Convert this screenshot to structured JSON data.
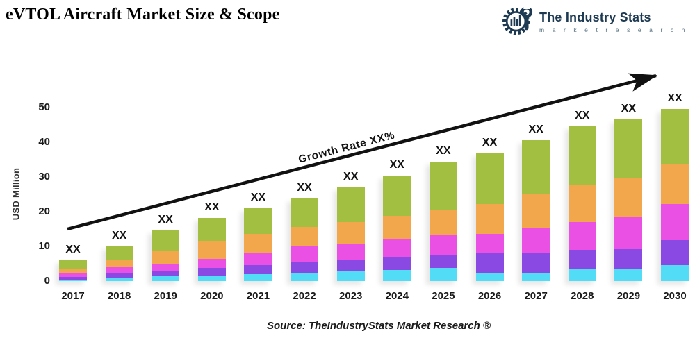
{
  "page_title": "eVTOL Aircraft Market Size & Scope",
  "logo": {
    "name": "The Industry Stats",
    "subtitle": "m a r k e t   r e s e a r c h",
    "color": "#1d3a52",
    "subtitle_color": "#547080",
    "icon": "gear-wrench-barchart-icon"
  },
  "source": "Source: TheIndustryStats Market Research ®",
  "chart_data": {
    "type": "bar",
    "stacked": true,
    "title": "eVTOL Aircraft Market Size & Scope",
    "xlabel": "",
    "ylabel": "USD Million",
    "ylim": [
      0,
      50
    ],
    "yticks": [
      0,
      10,
      20,
      30,
      40,
      50
    ],
    "grid": false,
    "legend": "none",
    "categories": [
      "2017",
      "2018",
      "2019",
      "2020",
      "2021",
      "2022",
      "2023",
      "2024",
      "2025",
      "2026",
      "2027",
      "2028",
      "2029",
      "2030"
    ],
    "bar_value_label": "XX",
    "annotation": "Growth Rate XX%",
    "annotation_style": "rotated along ascending arrow",
    "totals": [
      6.0,
      10.1,
      14.7,
      18.3,
      21.0,
      23.8,
      27.0,
      30.4,
      34.5,
      36.9,
      40.7,
      44.6,
      46.6,
      49.6
    ],
    "series": [
      {
        "name": "segment-cyan",
        "color": "#53DCF5",
        "values": [
          0.5,
          1.0,
          1.4,
          1.7,
          2.0,
          2.4,
          2.8,
          3.2,
          3.8,
          2.5,
          2.5,
          3.5,
          3.6,
          4.7
        ]
      },
      {
        "name": "segment-purple",
        "color": "#8B49E3",
        "values": [
          0.7,
          1.5,
          1.4,
          2.2,
          2.6,
          3.0,
          3.2,
          3.6,
          3.8,
          5.6,
          5.7,
          5.6,
          5.7,
          7.2
        ]
      },
      {
        "name": "segment-magenta",
        "color": "#EA50E4",
        "values": [
          1.0,
          1.6,
          2.3,
          2.6,
          3.7,
          4.6,
          4.9,
          5.5,
          5.7,
          5.5,
          7.0,
          8.0,
          9.2,
          10.4
        ]
      },
      {
        "name": "segment-orange",
        "color": "#F2A74D",
        "values": [
          1.5,
          2.0,
          3.8,
          5.2,
          5.3,
          5.6,
          6.2,
          6.6,
          7.4,
          8.6,
          9.8,
          10.7,
          11.4,
          11.4
        ]
      },
      {
        "name": "segment-green",
        "color": "#A3BF41",
        "values": [
          2.3,
          4.0,
          5.8,
          6.6,
          7.4,
          8.2,
          9.9,
          11.5,
          13.8,
          14.7,
          15.7,
          16.8,
          16.7,
          15.9
        ]
      }
    ],
    "arrow_color": "#111111"
  }
}
